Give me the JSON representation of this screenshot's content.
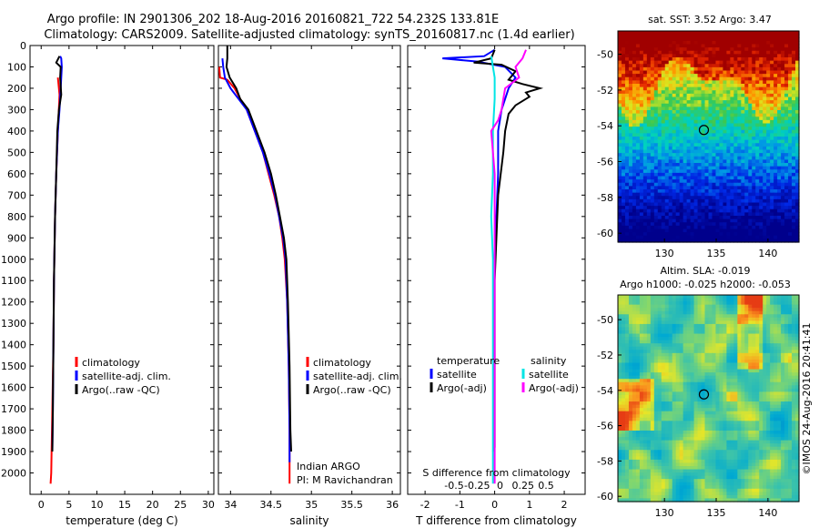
{
  "header": {
    "line1": "Argo profile: IN 2901306_202 18-Aug-2016 20160821_722 54.232S 133.81E",
    "line2": "Climatology: CARS2009. Satellite-adjusted climatology: synTS_20160817.nc (1.4d earlier)"
  },
  "colors": {
    "climatology": "#ff0000",
    "satellite": "#0000ff",
    "argo": "#000000",
    "sal_satellite": "#00e5e5",
    "sal_argo": "#ff00ff"
  },
  "chart_data": [
    {
      "type": "line",
      "id": "temperature",
      "xlabel": "temperature (deg C)",
      "ylim": [
        2100,
        0
      ],
      "xlim": [
        -2,
        31
      ],
      "xticks": [
        0,
        5,
        10,
        15,
        20,
        25,
        30
      ],
      "yticks": [
        0,
        100,
        200,
        300,
        400,
        500,
        600,
        700,
        800,
        900,
        1000,
        1100,
        1200,
        1300,
        1400,
        1500,
        1600,
        1700,
        1800,
        1900,
        2000
      ],
      "legend": [
        "climatology",
        "satellite-adj. clim.",
        "Argo(..raw -QC)"
      ],
      "series": [
        {
          "name": "climatology",
          "color": "#ff0000",
          "points": [
            [
              3.0,
              150
            ],
            [
              3.3,
              230
            ],
            [
              3.0,
              400
            ],
            [
              2.7,
              600
            ],
            [
              2.5,
              800
            ],
            [
              2.3,
              1100
            ],
            [
              2.2,
              1400
            ],
            [
              2.0,
              1700
            ],
            [
              1.8,
              2000
            ],
            [
              1.7,
              2050
            ]
          ]
        },
        {
          "name": "satellite-adj. clim.",
          "color": "#0000ff",
          "points": [
            [
              3.4,
              50
            ],
            [
              3.6,
              60
            ],
            [
              3.7,
              100
            ],
            [
              3.5,
              200
            ],
            [
              3.3,
              300
            ],
            [
              3.0,
              400
            ],
            [
              2.7,
              600
            ],
            [
              2.5,
              800
            ],
            [
              2.3,
              1100
            ],
            [
              2.2,
              1400
            ],
            [
              2.1,
              1700
            ],
            [
              2.0,
              1900
            ]
          ]
        },
        {
          "name": "Argo(..raw -QC)",
          "color": "#000000",
          "points": [
            [
              3.3,
              50
            ],
            [
              3.1,
              60
            ],
            [
              2.7,
              80
            ],
            [
              3.5,
              100
            ],
            [
              3.4,
              150
            ],
            [
              3.6,
              230
            ],
            [
              3.2,
              300
            ],
            [
              2.9,
              400
            ],
            [
              2.7,
              600
            ],
            [
              2.5,
              800
            ],
            [
              2.3,
              1100
            ],
            [
              2.2,
              1400
            ],
            [
              2.1,
              1700
            ],
            [
              2.0,
              1900
            ]
          ]
        }
      ]
    },
    {
      "type": "line",
      "id": "salinity",
      "xlabel": "salinity",
      "ylim": [
        2100,
        0
      ],
      "xlim": [
        33.85,
        36.1
      ],
      "xticks": [
        34,
        34.5,
        35,
        35.5,
        36
      ],
      "legend": [
        "climatology",
        "satellite-adj. clim.",
        "Argo(..raw -QC)"
      ],
      "annotation": [
        "Indian ARGO",
        "PI: M Ravichandran"
      ],
      "series": [
        {
          "name": "climatology",
          "color": "#ff0000",
          "points": [
            [
              33.86,
              100
            ],
            [
              33.87,
              150
            ],
            [
              33.96,
              160
            ],
            [
              34.05,
              200
            ],
            [
              34.12,
              250
            ],
            [
              34.2,
              300
            ],
            [
              34.3,
              400
            ],
            [
              34.4,
              500
            ],
            [
              34.47,
              600
            ],
            [
              34.54,
              700
            ],
            [
              34.6,
              800
            ],
            [
              34.64,
              900
            ],
            [
              34.67,
              1000
            ],
            [
              34.7,
              1200
            ],
            [
              34.72,
              1500
            ],
            [
              34.73,
              1800
            ],
            [
              34.73,
              2050
            ]
          ]
        },
        {
          "name": "satellite-adj. clim.",
          "color": "#0000ff",
          "points": [
            [
              33.9,
              60
            ],
            [
              33.91,
              100
            ],
            [
              33.93,
              150
            ],
            [
              34.0,
              200
            ],
            [
              34.1,
              250
            ],
            [
              34.2,
              300
            ],
            [
              34.3,
              400
            ],
            [
              34.4,
              500
            ],
            [
              34.48,
              600
            ],
            [
              34.55,
              700
            ],
            [
              34.6,
              800
            ],
            [
              34.65,
              900
            ],
            [
              34.68,
              1000
            ],
            [
              34.7,
              1200
            ],
            [
              34.72,
              1500
            ],
            [
              34.73,
              1800
            ],
            [
              34.73,
              1950
            ]
          ]
        },
        {
          "name": "Argo(..raw -QC)",
          "color": "#000000",
          "points": [
            [
              33.96,
              0
            ],
            [
              33.96,
              60
            ],
            [
              33.95,
              100
            ],
            [
              33.99,
              150
            ],
            [
              34.07,
              200
            ],
            [
              34.12,
              250
            ],
            [
              34.22,
              300
            ],
            [
              34.32,
              400
            ],
            [
              34.42,
              500
            ],
            [
              34.5,
              600
            ],
            [
              34.56,
              700
            ],
            [
              34.61,
              800
            ],
            [
              34.66,
              900
            ],
            [
              34.69,
              1000
            ],
            [
              34.71,
              1200
            ],
            [
              34.73,
              1500
            ],
            [
              34.74,
              1800
            ],
            [
              34.75,
              1900
            ]
          ]
        }
      ]
    },
    {
      "type": "line",
      "id": "difference",
      "xlabel": "T difference from climatology",
      "xlabel_top": "S difference from climatology",
      "ylim": [
        2100,
        0
      ],
      "xlim": [
        -2.5,
        2.6
      ],
      "xticks": [
        -2,
        -1,
        0,
        1,
        2
      ],
      "xtick_labels": [
        "-2",
        "-1",
        "0",
        "1",
        "2"
      ],
      "sticks": [
        -0.5,
        -0.25,
        0,
        0.25,
        0.5
      ],
      "stick_labels": [
        "-0.5",
        "-0.25",
        "0",
        "0.25",
        "0.5"
      ],
      "legend_titles": [
        "temperature",
        "salinity"
      ],
      "legend_left": [
        "satellite",
        "Argo(-adj)"
      ],
      "legend_right": [
        "satellite",
        "Argo(-adj)"
      ],
      "series": [
        {
          "name": "temperature satellite",
          "color": "#0000ff",
          "points": [
            [
              0,
              20
            ],
            [
              -0.3,
              50
            ],
            [
              -1.5,
              60
            ],
            [
              -0.5,
              75
            ],
            [
              0.3,
              100
            ],
            [
              0.6,
              150
            ],
            [
              0.4,
              200
            ],
            [
              0.2,
              300
            ],
            [
              0.1,
              400
            ],
            [
              0.1,
              600
            ],
            [
              0.05,
              800
            ],
            [
              0,
              1000
            ]
          ]
        },
        {
          "name": "temperature Argo(-adj)",
          "color": "#000000",
          "points": [
            [
              0,
              20
            ],
            [
              -0.1,
              60
            ],
            [
              -0.6,
              80
            ],
            [
              0.2,
              90
            ],
            [
              0.6,
              120
            ],
            [
              0.4,
              160
            ],
            [
              0.8,
              180
            ],
            [
              1.3,
              200
            ],
            [
              0.9,
              220
            ],
            [
              1.0,
              240
            ],
            [
              0.6,
              280
            ],
            [
              0.4,
              320
            ],
            [
              0.3,
              400
            ],
            [
              0.25,
              500
            ],
            [
              0.1,
              700
            ],
            [
              0.05,
              900
            ],
            [
              0,
              1100
            ],
            [
              0,
              1880
            ],
            [
              -0.05,
              1900
            ]
          ]
        },
        {
          "name": "salinity satellite",
          "color": "#00e5e5",
          "points": [
            [
              -0.1,
              50
            ],
            [
              0,
              150
            ],
            [
              0,
              250
            ],
            [
              -0.05,
              400
            ],
            [
              -0.05,
              600
            ],
            [
              -0.1,
              800
            ],
            [
              -0.05,
              1000
            ],
            [
              -0.05,
              1500
            ],
            [
              -0.05,
              1900
            ],
            [
              -0.05,
              2050
            ]
          ]
        },
        {
          "name": "salinity Argo(-adj)",
          "color": "#ff00ff",
          "points": [
            [
              0.9,
              20
            ],
            [
              0.8,
              60
            ],
            [
              0.6,
              100
            ],
            [
              0.7,
              150
            ],
            [
              0.3,
              200
            ],
            [
              0.25,
              250
            ],
            [
              0.2,
              300
            ],
            [
              0.1,
              350
            ],
            [
              -0.1,
              400
            ],
            [
              -0.05,
              500
            ],
            [
              0,
              600
            ],
            [
              0,
              1000
            ],
            [
              0,
              2050
            ]
          ]
        }
      ]
    },
    {
      "type": "heatmap",
      "id": "sst",
      "title": "sat. SST: 3.52  Argo: 3.47",
      "xlim": [
        125.5,
        143
      ],
      "ylim": [
        -60.5,
        -48.7
      ],
      "xticks": [
        130,
        135,
        140
      ],
      "yticks": [
        -50,
        -52,
        -54,
        -56,
        -58,
        -60
      ],
      "marker": [
        133.81,
        -54.232
      ]
    },
    {
      "type": "heatmap",
      "id": "sla",
      "title": "Altim. SLA: -0.019",
      "subtitle": "Argo h1000: -0.025 h2000: -0.053",
      "xlim": [
        125.5,
        143
      ],
      "ylim": [
        -60.3,
        -48.6
      ],
      "xticks": [
        130,
        135,
        140
      ],
      "yticks": [
        -50,
        -52,
        -54,
        -56,
        -58,
        -60
      ],
      "marker": [
        133.81,
        -54.232
      ],
      "side_label": "©IMOS 24-Aug-2016 20:41:41"
    }
  ]
}
